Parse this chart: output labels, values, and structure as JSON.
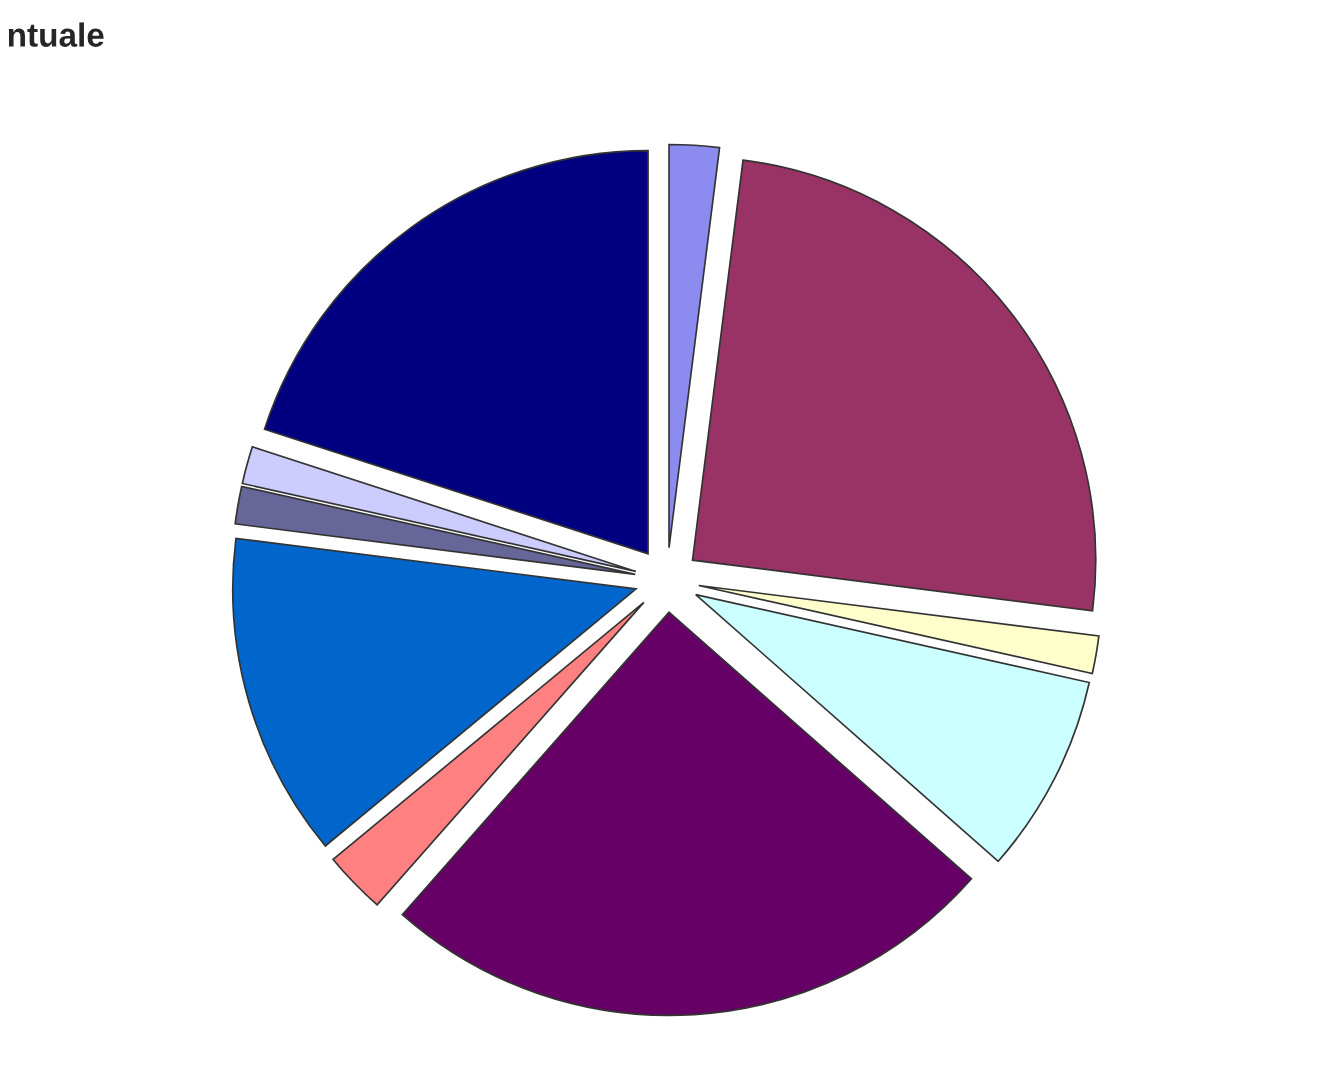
{
  "chart_data": {
    "type": "pie",
    "title": "ntuale",
    "categories": [
      null,
      null,
      null,
      null,
      null,
      null,
      null,
      null,
      null,
      null
    ],
    "values": [
      2,
      25,
      1.5,
      8,
      25,
      2.5,
      13,
      1.5,
      1.5,
      20
    ],
    "colors": [
      "#8c8cf0",
      "#993366",
      "#ffffcc",
      "#ccffff",
      "#660066",
      "#ff8080",
      "#0066cc",
      "#666699",
      "#ccccff",
      "#000080"
    ],
    "legend": false
  }
}
